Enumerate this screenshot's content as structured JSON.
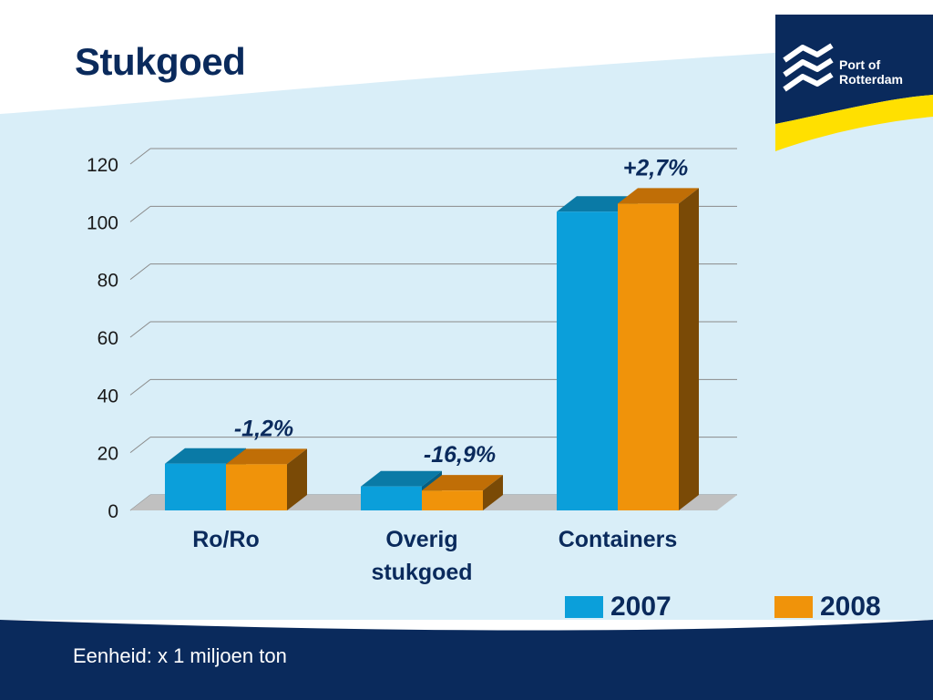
{
  "slide": {
    "title": "Stukgoed",
    "footer": "Eenheid: x 1 miljoen ton",
    "logo_text_line1": "Port of",
    "logo_text_line2": "Rotterdam"
  },
  "colors": {
    "navy": "#0a2a5c",
    "light_blue_bg": "#d9eef8",
    "series_2007": "#0b9fda",
    "series_2008": "#f0930a",
    "yellow": "#ffe000"
  },
  "chart_data": {
    "type": "bar",
    "title": "",
    "xlabel": "",
    "ylabel": "",
    "ylim": [
      0,
      120
    ],
    "yticks": [
      "0",
      "20",
      "40",
      "60",
      "80",
      "100",
      "120"
    ],
    "categories": [
      "Ro/Ro",
      "Overig stukgoed",
      "Containers"
    ],
    "category_lines": [
      [
        "Ro/Ro"
      ],
      [
        "Overig",
        "stukgoed"
      ],
      [
        "Containers"
      ]
    ],
    "series": [
      {
        "name": "2007",
        "values": [
          16.2,
          8.3,
          103.5
        ]
      },
      {
        "name": "2008",
        "values": [
          16.0,
          6.9,
          106.3
        ]
      }
    ],
    "annotations": [
      "-1,2%",
      "-16,9%",
      "+2,7%"
    ],
    "legend": "bottom-right",
    "grid": true
  }
}
